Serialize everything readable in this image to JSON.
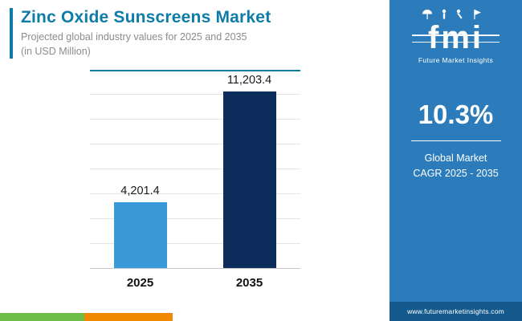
{
  "header": {
    "title": "Zinc Oxide Sunscreens Market",
    "subtitle_line1": "Projected global industry values for 2025 and 2035",
    "subtitle_line2": "(in USD Million)"
  },
  "chart_data": {
    "type": "bar",
    "categories": [
      "2025",
      "2035"
    ],
    "values": [
      4201.4,
      11203.4
    ],
    "value_labels": [
      "4,201.4",
      "11,203.4"
    ],
    "title": "Zinc Oxide Sunscreens Market",
    "xlabel": "",
    "ylabel": "USD Million",
    "ylim": [
      0,
      12500
    ],
    "grid": "horizontal",
    "legend": "none",
    "bar_colors": [
      "#3a99d8",
      "#0d2e5c"
    ]
  },
  "sidebar": {
    "logo_text": "fmi",
    "logo_caption": "Future Market Insights",
    "cagr_value": "10.3%",
    "cagr_label_line1": "Global Market",
    "cagr_label_line2": "CAGR 2025 - 2035",
    "footer_url": "www.futuremarketinsights.com"
  },
  "colors": {
    "accent_teal": "#0e7ca8",
    "sidebar_blue": "#2c7cbc",
    "footer_blue": "#155a8d",
    "bar_2025": "#3a99d8",
    "bar_2035": "#0d2e5c",
    "strip_green": "#6fbe47",
    "strip_orange": "#f18a00"
  }
}
